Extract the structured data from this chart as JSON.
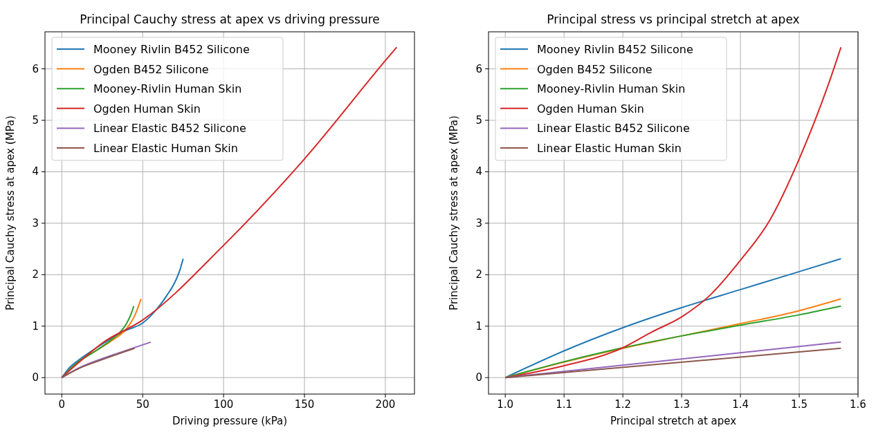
{
  "chart_data": [
    {
      "type": "line",
      "title": "Principal Cauchy stress at apex vs driving pressure",
      "xlabel": "Driving pressure (kPa)",
      "ylabel": "Principal Cauchy stress at apex (MPa)",
      "xlim": [
        -10.4,
        218
      ],
      "ylim": [
        -0.32,
        6.72
      ],
      "xticks": [
        0,
        50,
        100,
        150,
        200
      ],
      "yticks": [
        0,
        1,
        2,
        3,
        4,
        5,
        6
      ],
      "grid": true,
      "legend": "top left",
      "series": [
        {
          "name": "Mooney Rivlin B452 Silicone",
          "color": "#1f77b4",
          "x": [
            0,
            5,
            10,
            20,
            30,
            40,
            50,
            55,
            60,
            65,
            70,
            73,
            75
          ],
          "values": [
            0,
            0.2,
            0.33,
            0.55,
            0.75,
            0.92,
            1.06,
            1.2,
            1.38,
            1.6,
            1.86,
            2.09,
            2.31
          ]
        },
        {
          "name": "Ogden B452 Silicone",
          "color": "#ff7f0e",
          "x": [
            0,
            10,
            20,
            30,
            40,
            45,
            49
          ],
          "values": [
            0,
            0.3,
            0.5,
            0.7,
            0.95,
            1.2,
            1.53
          ]
        },
        {
          "name": "Mooney-Rivlin Human Skin",
          "color": "#2ca02c",
          "x": [
            0,
            10,
            20,
            30,
            35,
            40,
            43,
            44.5
          ],
          "values": [
            0,
            0.3,
            0.5,
            0.72,
            0.85,
            1.05,
            1.25,
            1.39
          ]
        },
        {
          "name": "Ogden Human Skin",
          "color": "#d62728",
          "x": [
            0,
            10,
            25,
            50,
            100,
            150,
            200,
            207
          ],
          "values": [
            0,
            0.28,
            0.67,
            1.12,
            2.57,
            4.25,
            6.16,
            6.42
          ]
        },
        {
          "name": "Linear Elastic B452 Silicone",
          "color": "#9467bd",
          "x": [
            0,
            10,
            25,
            40,
            55
          ],
          "values": [
            0,
            0.18,
            0.37,
            0.53,
            0.69
          ]
        },
        {
          "name": "Linear Elastic Human Skin",
          "color": "#8c564b",
          "x": [
            0,
            10,
            25,
            45
          ],
          "values": [
            0,
            0.17,
            0.35,
            0.57
          ]
        }
      ]
    },
    {
      "type": "line",
      "title": "Principal stress vs principal stretch at apex",
      "xlabel": "Principal stretch at apex",
      "ylabel": "Principal Cauchy stress at apex (MPa)",
      "xlim": [
        0.9715,
        1.6
      ],
      "ylim": [
        -0.32,
        6.72
      ],
      "xticks": [
        {
          "value": 1,
          "label": "1.0"
        },
        1.1,
        1.2,
        1.3,
        1.4,
        1.5,
        1.6
      ],
      "yticks": [
        0,
        1,
        2,
        3,
        4,
        5,
        6
      ],
      "grid": true,
      "legend": "top left",
      "series": [
        {
          "name": "Mooney Rivlin B452 Silicone",
          "color": "#1f77b4",
          "x": [
            1,
            1.1,
            1.2,
            1.3,
            1.4,
            1.5,
            1.571
          ],
          "values": [
            0,
            0.52,
            0.97,
            1.36,
            1.71,
            2.06,
            2.31
          ]
        },
        {
          "name": "Ogden B452 Silicone",
          "color": "#ff7f0e",
          "x": [
            1,
            1.1,
            1.2,
            1.3,
            1.4,
            1.5,
            1.571
          ],
          "values": [
            0,
            0.3,
            0.57,
            0.81,
            1.05,
            1.3,
            1.53
          ]
        },
        {
          "name": "Mooney-Rivlin Human Skin",
          "color": "#2ca02c",
          "x": [
            1,
            1.1,
            1.2,
            1.3,
            1.4,
            1.5,
            1.571
          ],
          "values": [
            0,
            0.31,
            0.58,
            0.81,
            1.02,
            1.22,
            1.39
          ]
        },
        {
          "name": "Ogden Human Skin",
          "color": "#d62728",
          "x": [
            1,
            1.1,
            1.2,
            1.25,
            1.3,
            1.35,
            1.4,
            1.45,
            1.5,
            1.55,
            1.571
          ],
          "values": [
            0,
            0.23,
            0.58,
            0.89,
            1.18,
            1.62,
            2.28,
            3.06,
            4.25,
            5.71,
            6.42
          ]
        },
        {
          "name": "Linear Elastic B452 Silicone",
          "color": "#9467bd",
          "x": [
            1,
            1.571
          ],
          "values": [
            0,
            0.69
          ]
        },
        {
          "name": "Linear Elastic Human Skin",
          "color": "#8c564b",
          "x": [
            1,
            1.571
          ],
          "values": [
            0,
            0.57
          ]
        }
      ]
    }
  ]
}
